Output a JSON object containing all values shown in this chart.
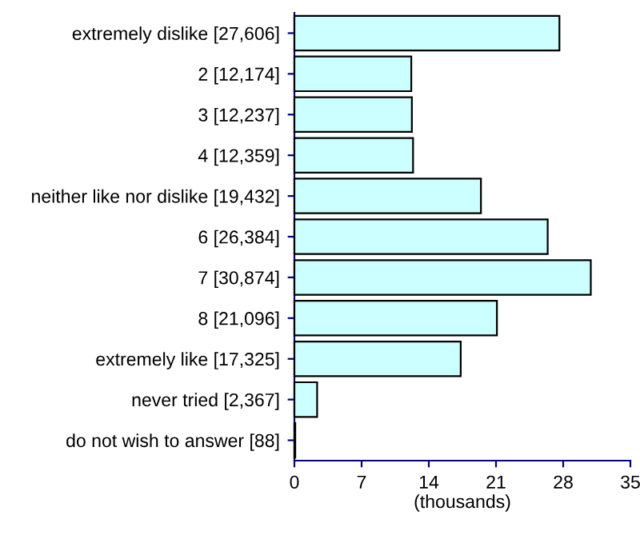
{
  "chart_data": {
    "type": "bar",
    "orientation": "horizontal",
    "categories": [
      "extremely dislike [27,606]",
      "2 [12,174]",
      "3 [12,237]",
      "4 [12,359]",
      "neither like nor dislike [19,432]",
      "6 [26,384]",
      "7 [30,874]",
      "8 [21,096]",
      "extremely like [17,325]",
      "never tried [2,367]",
      "do not wish to answer [88]"
    ],
    "values": [
      27.606,
      12.174,
      12.237,
      12.359,
      19.432,
      26.384,
      30.874,
      21.096,
      17.325,
      2.367,
      0.088
    ],
    "color": "#ccffff",
    "xlabel": "(thousands)",
    "xlim": [
      0,
      35
    ],
    "xticks": [
      0,
      7,
      14,
      21,
      28,
      35
    ],
    "grid": false,
    "legend": false
  }
}
